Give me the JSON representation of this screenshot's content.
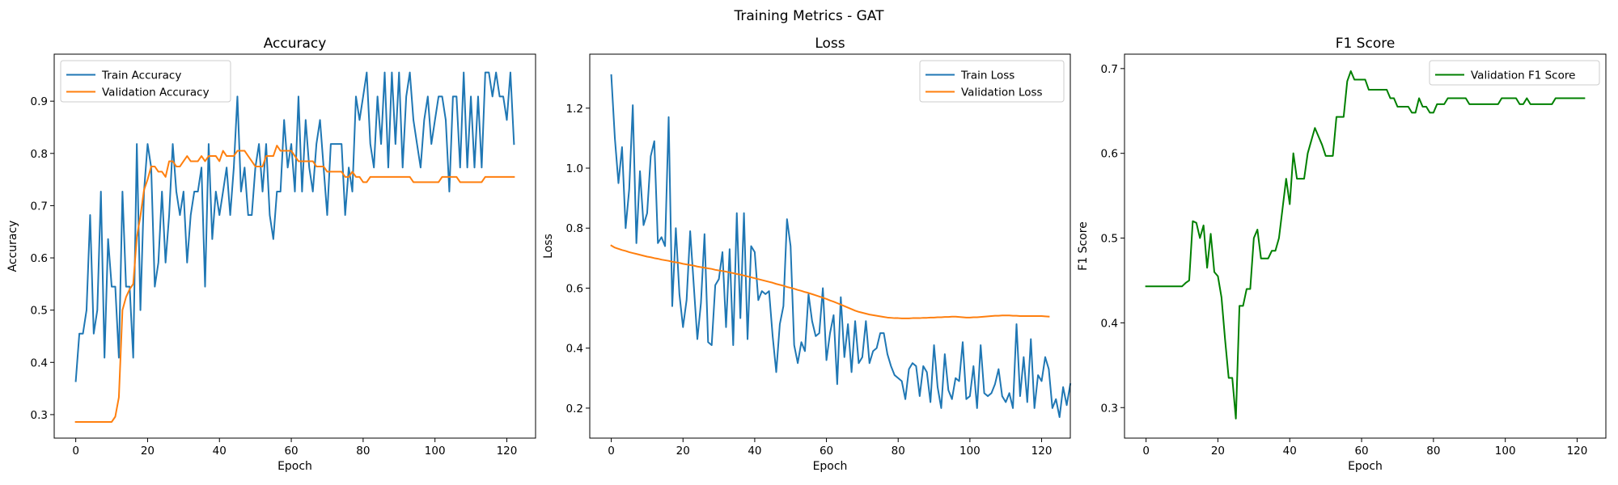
{
  "figure": {
    "suptitle": "Training Metrics - GAT"
  },
  "chart_data": [
    {
      "type": "line",
      "title": "Accuracy",
      "xlabel": "Epoch",
      "ylabel": "Accuracy",
      "xlim": [
        -6,
        128
      ],
      "ylim": [
        0.255,
        0.99
      ],
      "xticks": [
        0,
        20,
        40,
        60,
        80,
        100,
        120
      ],
      "yticks": [
        0.3,
        0.4,
        0.5,
        0.6,
        0.7,
        0.8,
        0.9
      ],
      "ytick_decimals": 1,
      "legend": "upper-left",
      "series": [
        {
          "name": "Train Accuracy",
          "color": "#1f77b4",
          "x_start": 0,
          "values": [
            0.364,
            0.455,
            0.455,
            0.5,
            0.682,
            0.455,
            0.5,
            0.727,
            0.409,
            0.636,
            0.545,
            0.545,
            0.409,
            0.727,
            0.545,
            0.545,
            0.409,
            0.818,
            0.5,
            0.727,
            0.818,
            0.773,
            0.545,
            0.591,
            0.727,
            0.591,
            0.682,
            0.818,
            0.727,
            0.682,
            0.727,
            0.591,
            0.682,
            0.727,
            0.727,
            0.773,
            0.545,
            0.818,
            0.636,
            0.727,
            0.682,
            0.727,
            0.773,
            0.682,
            0.773,
            0.909,
            0.727,
            0.773,
            0.682,
            0.682,
            0.773,
            0.818,
            0.727,
            0.818,
            0.682,
            0.636,
            0.727,
            0.727,
            0.864,
            0.773,
            0.818,
            0.727,
            0.909,
            0.727,
            0.864,
            0.773,
            0.727,
            0.818,
            0.864,
            0.773,
            0.682,
            0.818,
            0.818,
            0.818,
            0.818,
            0.682,
            0.773,
            0.727,
            0.909,
            0.864,
            0.909,
            0.955,
            0.818,
            0.773,
            0.909,
            0.818,
            0.955,
            0.773,
            0.955,
            0.818,
            0.955,
            0.773,
            0.909,
            0.955,
            0.864,
            0.818,
            0.773,
            0.864,
            0.909,
            0.818,
            0.864,
            0.909,
            0.909,
            0.864,
            0.727,
            0.909,
            0.909,
            0.773,
            0.955,
            0.773,
            0.909,
            0.773,
            0.909,
            0.773,
            0.955,
            0.955,
            0.909,
            0.955,
            0.909,
            0.909,
            0.864,
            0.955,
            0.818
          ]
        },
        {
          "name": "Validation Accuracy",
          "color": "#ff7f0e",
          "x_start": 0,
          "values": [
            0.286,
            0.286,
            0.286,
            0.286,
            0.286,
            0.286,
            0.286,
            0.286,
            0.286,
            0.286,
            0.286,
            0.296,
            0.333,
            0.5,
            0.525,
            0.54,
            0.55,
            0.64,
            0.68,
            0.73,
            0.75,
            0.775,
            0.775,
            0.765,
            0.765,
            0.755,
            0.785,
            0.785,
            0.775,
            0.775,
            0.785,
            0.795,
            0.785,
            0.785,
            0.785,
            0.795,
            0.785,
            0.795,
            0.795,
            0.795,
            0.785,
            0.805,
            0.795,
            0.795,
            0.795,
            0.805,
            0.805,
            0.805,
            0.795,
            0.785,
            0.775,
            0.775,
            0.775,
            0.795,
            0.795,
            0.795,
            0.815,
            0.805,
            0.805,
            0.805,
            0.805,
            0.795,
            0.785,
            0.785,
            0.785,
            0.785,
            0.785,
            0.775,
            0.775,
            0.775,
            0.765,
            0.765,
            0.765,
            0.765,
            0.765,
            0.755,
            0.755,
            0.765,
            0.755,
            0.755,
            0.745,
            0.745,
            0.755,
            0.755,
            0.755,
            0.755,
            0.755,
            0.755,
            0.755,
            0.755,
            0.755,
            0.755,
            0.755,
            0.755,
            0.745,
            0.745,
            0.745,
            0.745,
            0.745,
            0.745,
            0.745,
            0.745,
            0.755,
            0.755,
            0.755,
            0.755,
            0.755,
            0.745,
            0.745,
            0.745,
            0.745,
            0.745,
            0.745,
            0.745,
            0.755,
            0.755,
            0.755,
            0.755,
            0.755,
            0.755,
            0.755,
            0.755,
            0.755
          ]
        }
      ]
    },
    {
      "type": "line",
      "title": "Loss",
      "xlabel": "Epoch",
      "ylabel": "Loss",
      "xlim": [
        -6,
        128
      ],
      "ylim": [
        0.1,
        1.38
      ],
      "xticks": [
        0,
        20,
        40,
        60,
        80,
        100,
        120
      ],
      "yticks": [
        0.2,
        0.4,
        0.6,
        0.8,
        1.0,
        1.2
      ],
      "ytick_decimals": 1,
      "legend": "upper-right",
      "series": [
        {
          "name": "Train Loss",
          "color": "#1f77b4",
          "x_start": 0,
          "values": [
            1.31,
            1.1,
            0.95,
            1.07,
            0.8,
            0.93,
            1.21,
            0.75,
            0.99,
            0.81,
            0.85,
            1.04,
            1.09,
            0.75,
            0.77,
            0.74,
            1.17,
            0.54,
            0.8,
            0.58,
            0.47,
            0.56,
            0.79,
            0.61,
            0.43,
            0.55,
            0.78,
            0.42,
            0.41,
            0.61,
            0.63,
            0.72,
            0.47,
            0.73,
            0.41,
            0.85,
            0.5,
            0.85,
            0.43,
            0.74,
            0.72,
            0.56,
            0.59,
            0.58,
            0.59,
            0.44,
            0.32,
            0.48,
            0.54,
            0.83,
            0.74,
            0.41,
            0.35,
            0.42,
            0.39,
            0.58,
            0.49,
            0.44,
            0.45,
            0.6,
            0.36,
            0.45,
            0.51,
            0.28,
            0.57,
            0.37,
            0.48,
            0.32,
            0.49,
            0.35,
            0.37,
            0.49,
            0.35,
            0.39,
            0.4,
            0.45,
            0.45,
            0.38,
            0.34,
            0.31,
            0.3,
            0.29,
            0.23,
            0.33,
            0.35,
            0.34,
            0.24,
            0.34,
            0.32,
            0.22,
            0.41,
            0.27,
            0.2,
            0.38,
            0.26,
            0.23,
            0.3,
            0.29,
            0.42,
            0.23,
            0.24,
            0.34,
            0.2,
            0.41,
            0.25,
            0.24,
            0.25,
            0.28,
            0.33,
            0.24,
            0.22,
            0.25,
            0.2,
            0.48,
            0.24,
            0.37,
            0.22,
            0.43,
            0.2,
            0.31,
            0.29,
            0.37,
            0.33,
            0.2,
            0.23,
            0.17,
            0.27,
            0.21,
            0.28
          ]
        },
        {
          "name": "Validation Loss",
          "color": "#ff7f0e",
          "x_start": 0,
          "values": [
            0.742,
            0.735,
            0.731,
            0.727,
            0.724,
            0.72,
            0.717,
            0.714,
            0.711,
            0.708,
            0.705,
            0.703,
            0.7,
            0.698,
            0.695,
            0.693,
            0.691,
            0.688,
            0.686,
            0.684,
            0.681,
            0.679,
            0.677,
            0.675,
            0.672,
            0.67,
            0.668,
            0.666,
            0.664,
            0.661,
            0.659,
            0.657,
            0.655,
            0.652,
            0.65,
            0.647,
            0.645,
            0.642,
            0.639,
            0.636,
            0.633,
            0.63,
            0.627,
            0.624,
            0.621,
            0.618,
            0.614,
            0.611,
            0.608,
            0.604,
            0.601,
            0.598,
            0.594,
            0.591,
            0.587,
            0.584,
            0.58,
            0.576,
            0.572,
            0.568,
            0.564,
            0.559,
            0.555,
            0.55,
            0.545,
            0.54,
            0.535,
            0.53,
            0.525,
            0.521,
            0.518,
            0.515,
            0.512,
            0.51,
            0.508,
            0.506,
            0.504,
            0.502,
            0.501,
            0.5,
            0.5,
            0.499,
            0.499,
            0.499,
            0.5,
            0.5,
            0.5,
            0.501,
            0.501,
            0.502,
            0.502,
            0.503,
            0.503,
            0.504,
            0.504,
            0.505,
            0.505,
            0.504,
            0.503,
            0.502,
            0.502,
            0.503,
            0.503,
            0.504,
            0.505,
            0.506,
            0.507,
            0.508,
            0.508,
            0.509,
            0.509,
            0.509,
            0.508,
            0.508,
            0.507,
            0.507,
            0.507,
            0.507,
            0.507,
            0.507,
            0.507,
            0.506,
            0.505
          ]
        }
      ]
    },
    {
      "type": "line",
      "title": "F1 Score",
      "xlabel": "Epoch",
      "ylabel": "F1 Score",
      "xlim": [
        -6,
        128
      ],
      "ylim": [
        0.264,
        0.717
      ],
      "xticks": [
        0,
        20,
        40,
        60,
        80,
        100,
        120
      ],
      "yticks": [
        0.3,
        0.4,
        0.5,
        0.6,
        0.7
      ],
      "ytick_decimals": 1,
      "legend": "upper-right",
      "series": [
        {
          "name": "Validation F1 Score",
          "color": "#008000",
          "x_start": 0,
          "values": [
            0.443,
            0.443,
            0.443,
            0.443,
            0.443,
            0.443,
            0.443,
            0.443,
            0.443,
            0.443,
            0.443,
            0.447,
            0.45,
            0.52,
            0.518,
            0.5,
            0.515,
            0.465,
            0.505,
            0.46,
            0.455,
            0.43,
            0.38,
            0.335,
            0.335,
            0.287,
            0.42,
            0.42,
            0.44,
            0.44,
            0.5,
            0.51,
            0.476,
            0.476,
            0.476,
            0.485,
            0.485,
            0.5,
            0.535,
            0.57,
            0.54,
            0.6,
            0.57,
            0.57,
            0.57,
            0.6,
            0.615,
            0.63,
            0.62,
            0.61,
            0.597,
            0.597,
            0.597,
            0.643,
            0.643,
            0.643,
            0.685,
            0.697,
            0.687,
            0.687,
            0.687,
            0.687,
            0.675,
            0.675,
            0.675,
            0.675,
            0.675,
            0.675,
            0.665,
            0.665,
            0.655,
            0.655,
            0.655,
            0.655,
            0.648,
            0.648,
            0.665,
            0.655,
            0.655,
            0.648,
            0.648,
            0.658,
            0.658,
            0.658,
            0.665,
            0.665,
            0.665,
            0.665,
            0.665,
            0.665,
            0.658,
            0.658,
            0.658,
            0.658,
            0.658,
            0.658,
            0.658,
            0.658,
            0.658,
            0.665,
            0.665,
            0.665,
            0.665,
            0.665,
            0.658,
            0.658,
            0.665,
            0.658,
            0.658,
            0.658,
            0.658,
            0.658,
            0.658,
            0.658,
            0.665,
            0.665,
            0.665,
            0.665,
            0.665,
            0.665,
            0.665,
            0.665,
            0.665
          ]
        }
      ]
    }
  ]
}
